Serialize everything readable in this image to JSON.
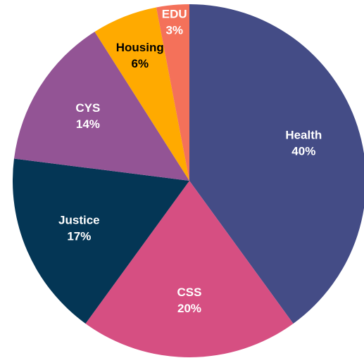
{
  "chart_data": {
    "type": "pie",
    "categories": [
      "Health",
      "CSS",
      "Justice",
      "CYS",
      "Housing",
      "EDU"
    ],
    "values": [
      40,
      20,
      17,
      14,
      6,
      3
    ],
    "value_labels": [
      "40%",
      "20%",
      "17%",
      "14%",
      "6%",
      "3%"
    ],
    "colors": [
      "#444c86",
      "#d64f82",
      "#043655",
      "#935495",
      "#ffaa00",
      "#f4715a"
    ]
  }
}
